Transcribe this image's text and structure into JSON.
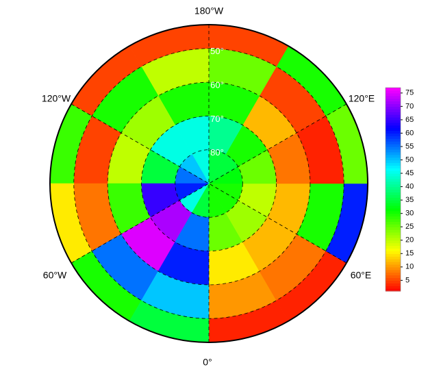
{
  "map": {
    "meridian_labels": [
      "180°W",
      "120°E",
      "60°E",
      "0°",
      "60°W",
      "120°W"
    ],
    "latitude_ticks": [
      {
        "value": 50,
        "label": "50°"
      },
      {
        "value": 60,
        "label": "60°"
      },
      {
        "value": 70,
        "label": "70°"
      },
      {
        "value": 80,
        "label": "80°"
      }
    ],
    "field": {
      "sector_width": 30,
      "values": [
        [
          30,
          25,
          15,
          10,
          3
        ],
        [
          30,
          22,
          12,
          8,
          3
        ],
        [
          30,
          20,
          12,
          30,
          60
        ],
        [
          32,
          25,
          8,
          3,
          25
        ],
        [
          35,
          30,
          12,
          5,
          30
        ],
        [
          35,
          40,
          30,
          25,
          5
        ],
        [
          45,
          45,
          30,
          20,
          5
        ],
        [
          50,
          45,
          22,
          30,
          5
        ],
        [
          55,
          35,
          20,
          5,
          28
        ],
        [
          60,
          65,
          28,
          8,
          15
        ],
        [
          45,
          72,
          75,
          55,
          30
        ],
        [
          35,
          55,
          60,
          50,
          35
        ]
      ]
    },
    "colorbar": {
      "lim": [
        1,
        77
      ],
      "ticks": [
        5,
        10,
        15,
        20,
        25,
        30,
        35,
        40,
        45,
        50,
        55,
        60,
        65,
        70,
        75
      ]
    }
  }
}
